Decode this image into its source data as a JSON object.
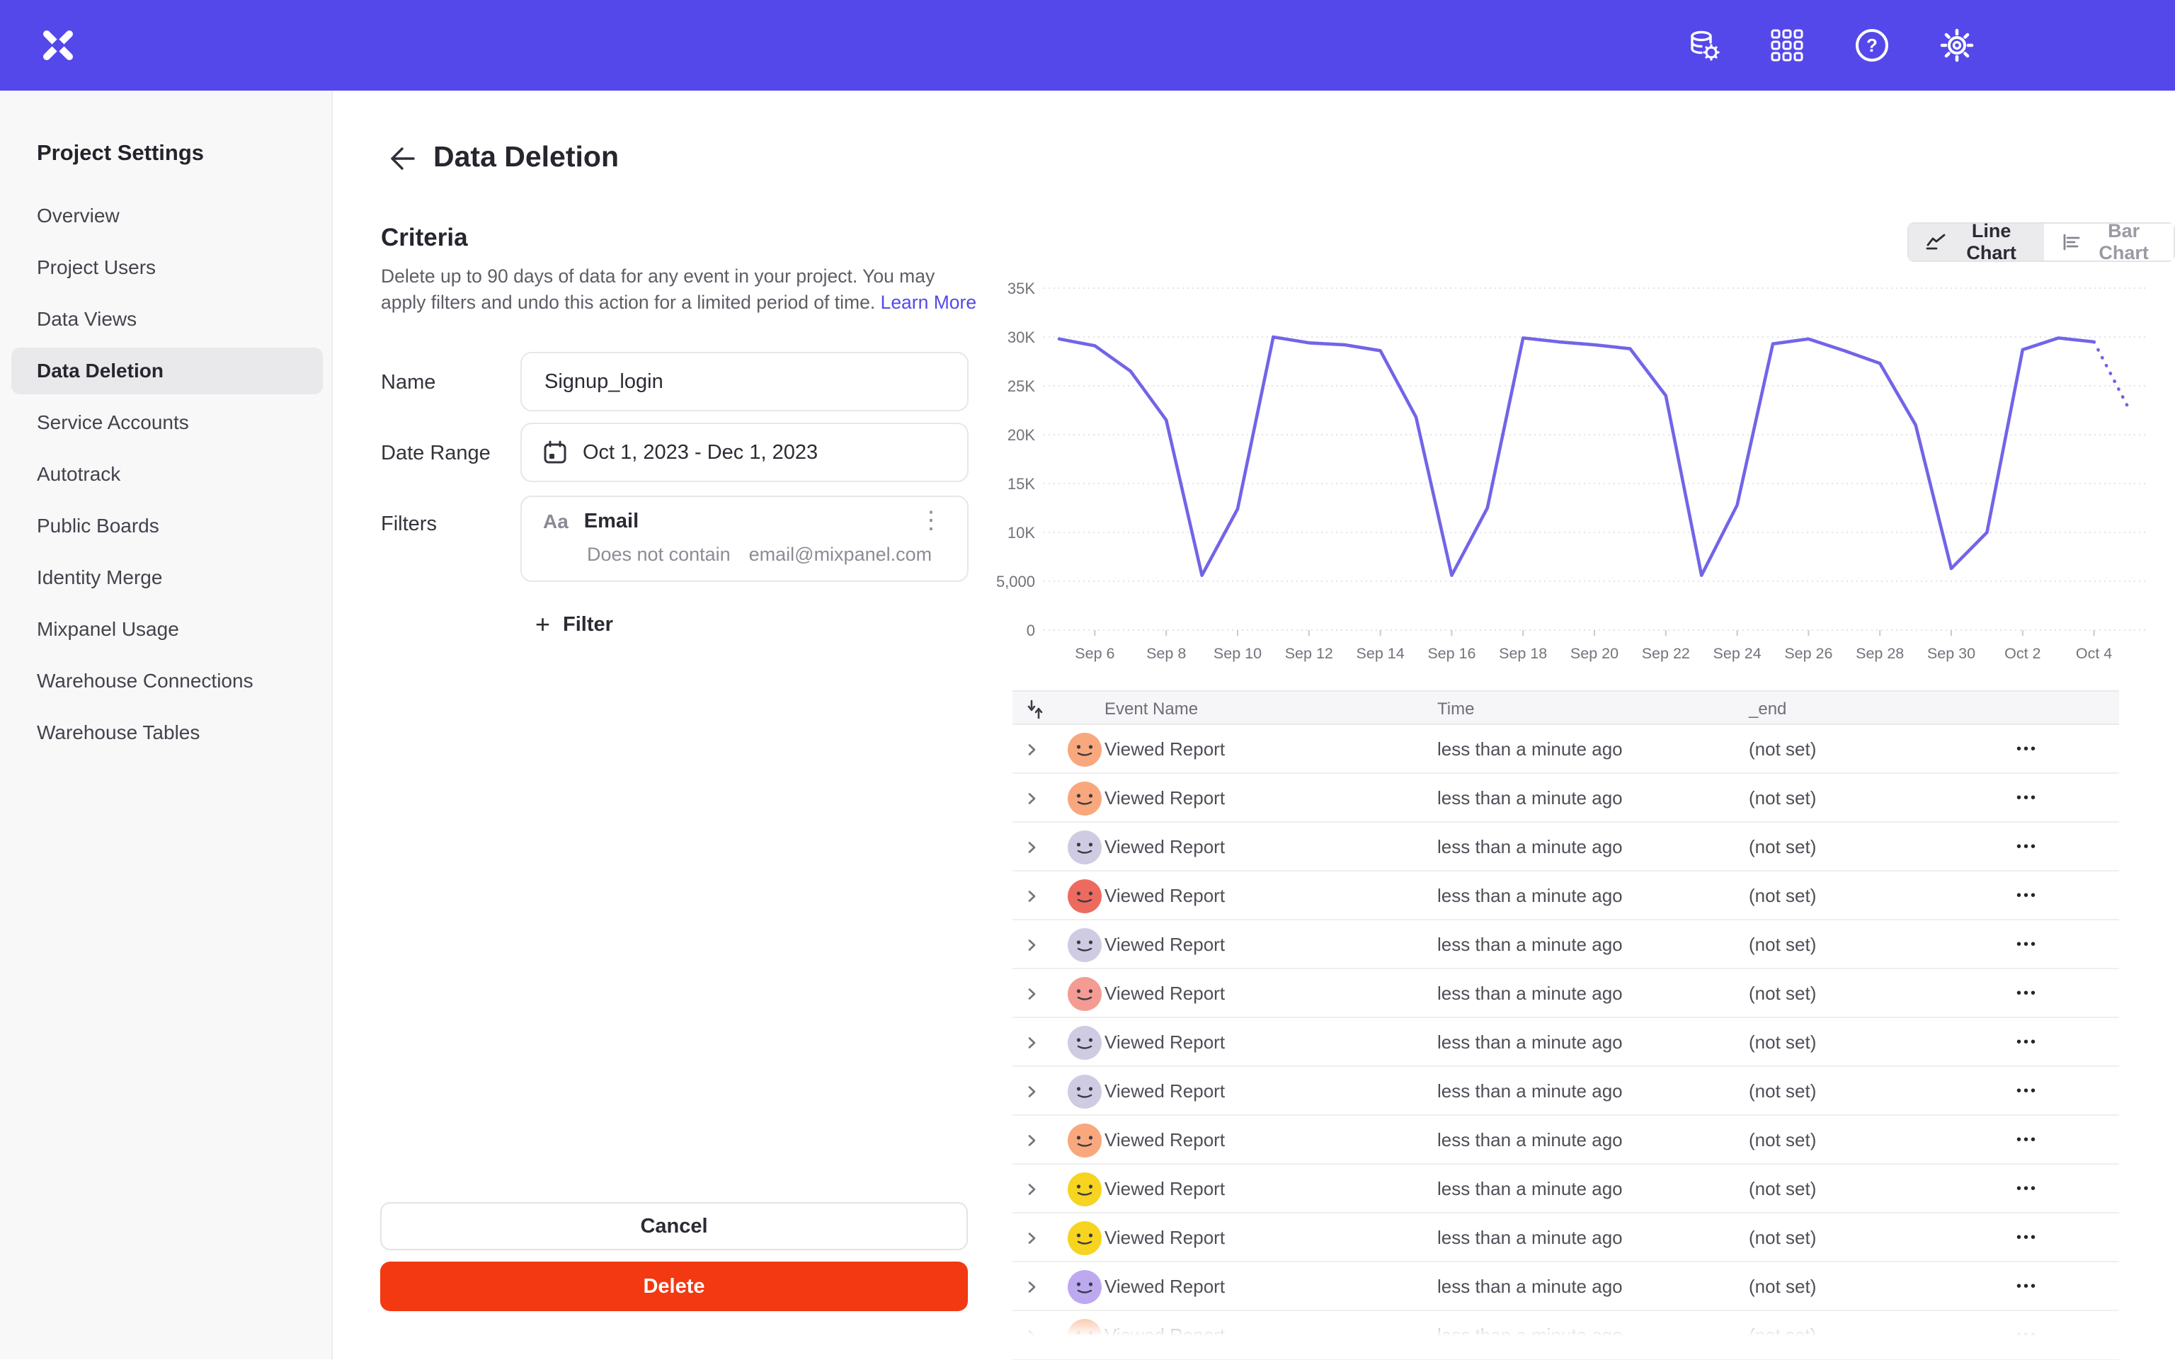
{
  "colors": {
    "brand_purple": "#5448EB",
    "chart_line": "#7264E8",
    "delete_red": "#F23911",
    "sidebar_active_bg": "#E9E9EC",
    "link": "#5448EB"
  },
  "icons": {
    "help_glyph": "?",
    "plus_glyph": "+",
    "kebab_vertical": "⋮",
    "kebab_horizontal": "•••"
  },
  "header": {
    "logo": "mixpanel-x-logo",
    "icon_buttons": [
      "data-settings-icon",
      "apps-grid-icon",
      "help-icon",
      "settings-gear-icon"
    ]
  },
  "sidebar": {
    "title": "Project Settings",
    "items": [
      {
        "label": "Overview",
        "active": false
      },
      {
        "label": "Project Users",
        "active": false
      },
      {
        "label": "Data Views",
        "active": false
      },
      {
        "label": "Data Deletion",
        "active": true
      },
      {
        "label": "Service Accounts",
        "active": false
      },
      {
        "label": "Autotrack",
        "active": false
      },
      {
        "label": "Public Boards",
        "active": false
      },
      {
        "label": "Identity Merge",
        "active": false
      },
      {
        "label": "Mixpanel Usage",
        "active": false
      },
      {
        "label": "Warehouse Connections",
        "active": false
      },
      {
        "label": "Warehouse Tables",
        "active": false
      }
    ]
  },
  "main": {
    "title": "Data Deletion",
    "criteria": {
      "heading": "Criteria",
      "description": "Delete up to 90 days of data for any event in your project. You may apply filters and undo this action for a limited period of time.",
      "learn_more": "Learn More",
      "name_label": "Name",
      "name_value": "Signup_login",
      "date_label": "Date Range",
      "date_value": "Oct 1, 2023 - Dec 1, 2023",
      "filters_label": "Filters",
      "filter": {
        "type_badge": "Aa",
        "property": "Email",
        "operator": "Does not contain",
        "value": "email@mixpanel.com"
      },
      "add_filter_label": "Filter",
      "cancel_label": "Cancel",
      "delete_label": "Delete"
    }
  },
  "chart": {
    "line_toggle_label": "Line Chart",
    "bar_toggle_label": "Bar Chart",
    "active_view": "Line Chart"
  },
  "chart_data": {
    "type": "line",
    "title": "",
    "xlabel": "",
    "ylabel": "",
    "ylim": [
      0,
      35000
    ],
    "grid": true,
    "x": [
      "Sep 5",
      "Sep 6",
      "Sep 7",
      "Sep 8",
      "Sep 9",
      "Sep 10",
      "Sep 11",
      "Sep 12",
      "Sep 13",
      "Sep 14",
      "Sep 15",
      "Sep 16",
      "Sep 17",
      "Sep 18",
      "Sep 19",
      "Sep 20",
      "Sep 21",
      "Sep 22",
      "Sep 23",
      "Sep 24",
      "Sep 25",
      "Sep 26",
      "Sep 27",
      "Sep 28",
      "Sep 29",
      "Sep 30",
      "Oct 1",
      "Oct 2",
      "Oct 3",
      "Oct 4",
      "Oct 5"
    ],
    "values": [
      29800,
      29100,
      26500,
      21500,
      5600,
      12400,
      30000,
      29400,
      29200,
      28600,
      21800,
      5600,
      12500,
      29900,
      29500,
      29200,
      28800,
      24000,
      5600,
      12800,
      29300,
      29800,
      28600,
      27300,
      21000,
      6300,
      10000,
      28700,
      29900,
      29500,
      22500
    ],
    "projected_last_segment": true,
    "yticks": [
      0,
      5000,
      10000,
      15000,
      20000,
      25000,
      30000,
      35000
    ],
    "ytick_labels": [
      "0",
      "5,000",
      "10K",
      "15K",
      "20K",
      "25K",
      "30K",
      "35K"
    ],
    "xtick_labels": [
      "Sep 6",
      "Sep 8",
      "Sep 10",
      "Sep 12",
      "Sep 14",
      "Sep 16",
      "Sep 18",
      "Sep 20",
      "Sep 22",
      "Sep 24",
      "Sep 26",
      "Sep 28",
      "Sep 30",
      "Oct 2",
      "Oct 4"
    ]
  },
  "table": {
    "columns": [
      "Event Name",
      "Time",
      "_end"
    ],
    "rows": [
      {
        "avatar_color": "#F9A77C",
        "name": "Viewed Report",
        "time": "less than a minute ago",
        "end": "(not set)"
      },
      {
        "avatar_color": "#F9A77C",
        "name": "Viewed Report",
        "time": "less than a minute ago",
        "end": "(not set)"
      },
      {
        "avatar_color": "#CFCBE2",
        "name": "Viewed Report",
        "time": "less than a minute ago",
        "end": "(not set)"
      },
      {
        "avatar_color": "#ED6A5F",
        "name": "Viewed Report",
        "time": "less than a minute ago",
        "end": "(not set)"
      },
      {
        "avatar_color": "#CFCBE2",
        "name": "Viewed Report",
        "time": "less than a minute ago",
        "end": "(not set)"
      },
      {
        "avatar_color": "#F49B93",
        "name": "Viewed Report",
        "time": "less than a minute ago",
        "end": "(not set)"
      },
      {
        "avatar_color": "#CFCBE2",
        "name": "Viewed Report",
        "time": "less than a minute ago",
        "end": "(not set)"
      },
      {
        "avatar_color": "#CFCBE2",
        "name": "Viewed Report",
        "time": "less than a minute ago",
        "end": "(not set)"
      },
      {
        "avatar_color": "#F9A77C",
        "name": "Viewed Report",
        "time": "less than a minute ago",
        "end": "(not set)"
      },
      {
        "avatar_color": "#F6D41F",
        "name": "Viewed Report",
        "time": "less than a minute ago",
        "end": "(not set)"
      },
      {
        "avatar_color": "#F6D41F",
        "name": "Viewed Report",
        "time": "less than a minute ago",
        "end": "(not set)"
      },
      {
        "avatar_color": "#BCA9F0",
        "name": "Viewed Report",
        "time": "less than a minute ago",
        "end": "(not set)"
      },
      {
        "avatar_color": "#F9A77C",
        "name": "Viewed Report",
        "time": "less than a minute ago",
        "end": "(not set)"
      }
    ]
  }
}
